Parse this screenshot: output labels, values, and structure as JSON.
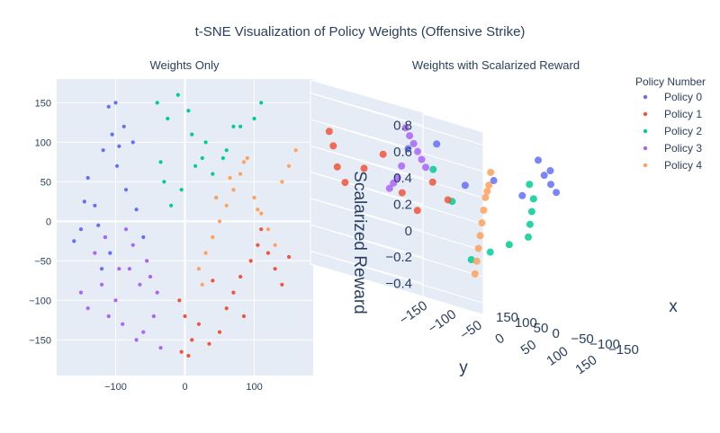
{
  "title": "t-SNE Visualization of Policy Weights (Offensive Strike)",
  "colors": {
    "plot_bg": "#e5ecf6",
    "grid": "#ffffff",
    "text": "#2a3f5f",
    "series": [
      "#636efa",
      "#ef553b",
      "#00cc96",
      "#ab63fa",
      "#ffa15a"
    ]
  },
  "chart_data": [
    {
      "type": "scatter",
      "title": "Weights Only",
      "xlim": [
        -185,
        185
      ],
      "ylim": [
        -195,
        180
      ],
      "xticks": [
        -100,
        0,
        100
      ],
      "yticks": [
        150,
        100,
        50,
        0,
        -50,
        -100,
        -150
      ],
      "xtick_labels": [
        "−100",
        "0",
        "100"
      ],
      "ytick_labels": [
        "150",
        "100",
        "50",
        "0",
        "−50",
        "−100",
        "−150"
      ],
      "grid": true,
      "series": [
        {
          "name": "Policy 0",
          "x": [
            -100,
            -88,
            -110,
            -95,
            -105,
            -118,
            -125,
            -130,
            -75,
            -85,
            -60,
            -70,
            -140,
            -150,
            -120,
            -160,
            -145,
            -115,
            -98,
            -108
          ],
          "y": [
            150,
            120,
            145,
            95,
            110,
            90,
            -5,
            20,
            100,
            40,
            -20,
            15,
            55,
            -10,
            -60,
            -25,
            25,
            -20,
            70,
            -40
          ]
        },
        {
          "name": "Policy 1",
          "x": [
            0,
            10,
            5,
            -8,
            20,
            35,
            50,
            60,
            70,
            80,
            95,
            105,
            120,
            130,
            140,
            150,
            110,
            -5,
            40,
            85
          ],
          "y": [
            -120,
            -150,
            -170,
            -100,
            -130,
            -155,
            -140,
            -110,
            -90,
            -70,
            -50,
            -30,
            -40,
            -60,
            -80,
            -45,
            -10,
            -165,
            -75,
            -120
          ]
        },
        {
          "name": "Policy 2",
          "x": [
            -40,
            -25,
            -10,
            5,
            10,
            25,
            40,
            60,
            80,
            110,
            -30,
            -20,
            -5,
            15,
            30,
            45,
            55,
            70,
            100,
            -35
          ],
          "y": [
            150,
            130,
            160,
            140,
            110,
            80,
            60,
            90,
            120,
            150,
            50,
            20,
            40,
            70,
            100,
            30,
            80,
            120,
            130,
            75
          ]
        },
        {
          "name": "Policy 3",
          "x": [
            -150,
            -140,
            -120,
            -110,
            -100,
            -90,
            -80,
            -70,
            -60,
            -50,
            -40,
            -130,
            -115,
            -95,
            -85,
            -75,
            -65,
            -55,
            -45,
            -35
          ],
          "y": [
            -90,
            -110,
            -80,
            -120,
            -100,
            -130,
            -60,
            -150,
            -140,
            -70,
            -90,
            -40,
            -20,
            -60,
            -10,
            -30,
            -80,
            -50,
            -120,
            -160
          ]
        },
        {
          "name": "Policy 4",
          "x": [
            20,
            30,
            40,
            50,
            60,
            70,
            80,
            90,
            100,
            110,
            120,
            130,
            140,
            150,
            160,
            25,
            45,
            65,
            85,
            105
          ],
          "y": [
            -60,
            -40,
            -20,
            0,
            20,
            40,
            60,
            80,
            30,
            10,
            -10,
            -30,
            50,
            70,
            90,
            -80,
            30,
            55,
            75,
            15
          ]
        }
      ]
    },
    {
      "type": "scatter3d",
      "title": "Weights with Scalarized Reward",
      "xlabel": "x",
      "ylabel": "y",
      "zlabel": "Scalarized Reward",
      "xticks": [
        "−150",
        "−100",
        "−50",
        "0",
        "50",
        "100",
        "150"
      ],
      "yticks": [
        "−150",
        "−100",
        "−50",
        "0",
        "50",
        "100",
        "150"
      ],
      "zticks": [
        "0.8",
        "0.6",
        "0.4",
        "0.2",
        "0",
        "−0.2",
        "−0.4"
      ],
      "legend": {
        "title": "Policy Number",
        "placement": "top-right",
        "entries": [
          "Policy 0",
          "Policy 1",
          "Policy 2",
          "Policy 3",
          "Policy 4"
        ]
      },
      "series": [
        {
          "name": "Policy 0",
          "x": [
            -150,
            -120,
            -90,
            -60,
            -30,
            0,
            30,
            60,
            90,
            120
          ],
          "y": [
            50,
            80,
            110,
            140,
            150,
            120,
            90,
            60,
            30,
            0
          ],
          "z": [
            0.8,
            0.7,
            0.75,
            0.6,
            0.65,
            0.5,
            0.55,
            0.45,
            0.7,
            0.6
          ]
        },
        {
          "name": "Policy 1",
          "x": [
            100,
            120,
            140,
            150,
            130,
            110,
            90,
            80,
            70,
            60
          ],
          "y": [
            -150,
            -130,
            -110,
            -90,
            -70,
            -50,
            -30,
            -10,
            10,
            30
          ],
          "z": [
            0.55,
            0.45,
            0.3,
            0.2,
            0.35,
            0.5,
            0.25,
            0.15,
            0.4,
            0.3
          ]
        },
        {
          "name": "Policy 2",
          "x": [
            -50,
            -30,
            -10,
            10,
            30,
            50,
            70,
            90,
            110,
            130
          ],
          "y": [
            100,
            120,
            130,
            140,
            150,
            130,
            110,
            90,
            70,
            50
          ],
          "z": [
            0.6,
            0.5,
            0.4,
            0.3,
            0.2,
            0.1,
            0.0,
            -0.1,
            0.3,
            0.5
          ]
        },
        {
          "name": "Policy 3",
          "x": [
            50,
            70,
            90,
            110,
            130,
            150,
            30,
            10,
            -10,
            -30
          ],
          "y": [
            -50,
            -30,
            -10,
            10,
            30,
            50,
            -70,
            -90,
            -110,
            -130
          ],
          "z": [
            0.75,
            0.7,
            0.65,
            0.6,
            0.55,
            0.5,
            0.45,
            0.35,
            0.3,
            0.25
          ]
        },
        {
          "name": "Policy 4",
          "x": [
            -100,
            -80,
            -60,
            -40,
            -20,
            0,
            20,
            40,
            60,
            80
          ],
          "y": [
            0,
            10,
            20,
            30,
            40,
            50,
            60,
            70,
            80,
            90
          ],
          "z": [
            0.6,
            0.5,
            0.45,
            0.4,
            0.3,
            0.2,
            0.1,
            0.0,
            -0.1,
            -0.2
          ]
        }
      ]
    }
  ]
}
